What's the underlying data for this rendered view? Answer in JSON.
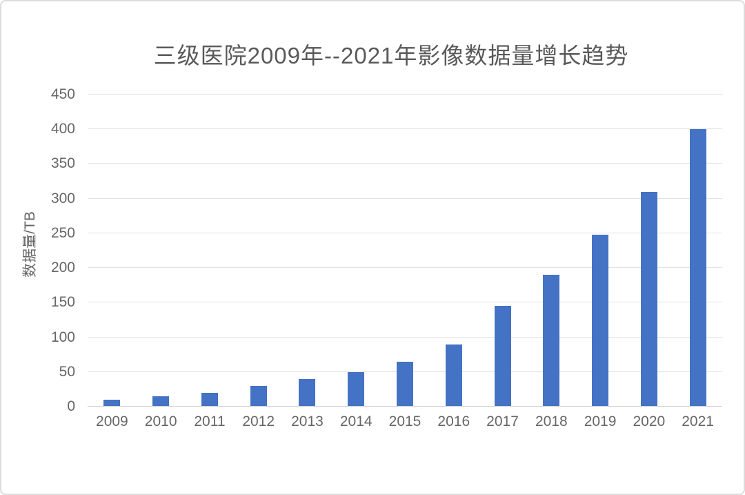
{
  "chart_data": {
    "type": "bar",
    "title": "三级医院2009年--2021年影像数据量增长趋势",
    "xlabel": "",
    "ylabel": "数据量/TB",
    "categories": [
      "2009",
      "2010",
      "2011",
      "2012",
      "2013",
      "2014",
      "2015",
      "2016",
      "2017",
      "2018",
      "2019",
      "2020",
      "2021"
    ],
    "values": [
      10,
      15,
      20,
      30,
      40,
      50,
      65,
      90,
      145,
      190,
      248,
      310,
      400
    ],
    "ylim": [
      0,
      450
    ],
    "yticks": [
      0,
      50,
      100,
      150,
      200,
      250,
      300,
      350,
      400,
      450
    ],
    "grid": "horizontal",
    "legend_position": "none"
  },
  "colors": {
    "bar": "#4472c4",
    "gridline": "#e2e2e2",
    "axis_line": "#cfcfcf",
    "title_text": "#595959",
    "tick_text": "#666666",
    "frame_border": "#dcdcdc",
    "background": "#ffffff"
  }
}
